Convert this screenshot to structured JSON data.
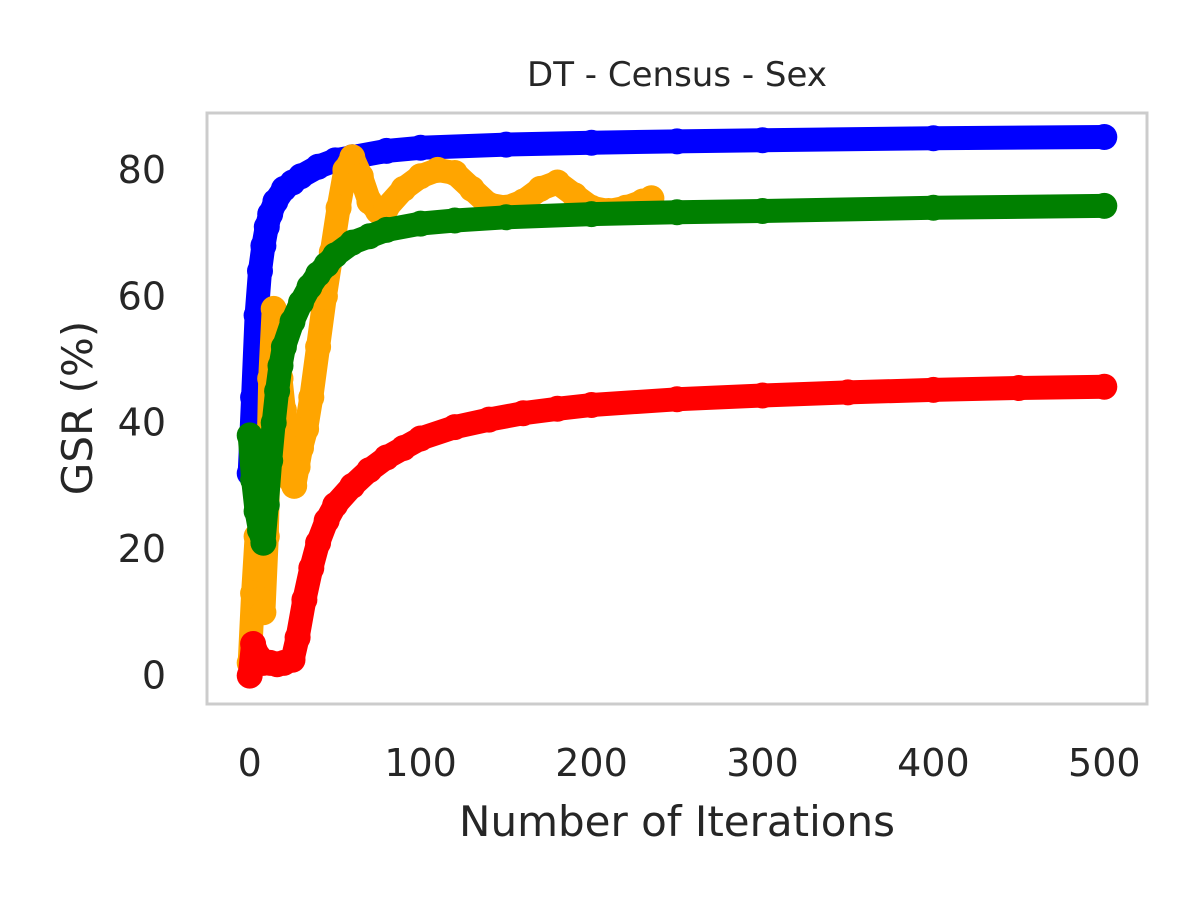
{
  "chart_data": {
    "type": "line",
    "title": "DT - Census - Sex",
    "xlabel": "Number of Iterations",
    "ylabel": "GSR (%)",
    "xlim": [
      -25,
      525
    ],
    "ylim": [
      -4.5,
      89
    ],
    "xticks": [
      0,
      100,
      200,
      300,
      400,
      500
    ],
    "yticks": [
      0,
      20,
      40,
      60,
      80
    ],
    "grid": false,
    "markers": true,
    "series": [
      {
        "color": "#0000ff",
        "x": [
          0,
          2,
          4,
          6,
          8,
          10,
          12,
          15,
          20,
          25,
          30,
          40,
          50,
          60,
          80,
          100,
          150,
          200,
          250,
          300,
          400,
          500
        ],
        "values": [
          32,
          44,
          57,
          64,
          68,
          71,
          73,
          75,
          77,
          78,
          79,
          80.5,
          81.5,
          82,
          83,
          83.5,
          84,
          84.3,
          84.5,
          84.7,
          85,
          85.2
        ]
      },
      {
        "color": "#ffa500",
        "x": [
          0,
          2,
          4,
          6,
          8,
          10,
          12,
          14,
          16,
          18,
          20,
          22,
          24,
          26,
          28,
          30,
          33,
          36,
          40,
          44,
          48,
          52,
          56,
          60,
          65,
          70,
          75,
          80,
          90,
          100,
          110,
          120,
          130,
          140,
          150,
          160,
          170,
          180,
          190,
          200,
          210,
          220,
          230,
          235
        ],
        "values": [
          2,
          13,
          22,
          12,
          10,
          22,
          47,
          58,
          56,
          47,
          42,
          37,
          31,
          30,
          33,
          36,
          39,
          44,
          52,
          60,
          67,
          74,
          80,
          82,
          79,
          75,
          73.5,
          74,
          77,
          79,
          80,
          79.5,
          77,
          74.5,
          74,
          75,
          77,
          78,
          76,
          74,
          73.5,
          74,
          75,
          75.5
        ]
      },
      {
        "color": "#008000",
        "x": [
          0,
          2,
          4,
          6,
          8,
          10,
          12,
          14,
          16,
          18,
          20,
          25,
          30,
          35,
          40,
          45,
          50,
          60,
          70,
          80,
          100,
          120,
          150,
          200,
          250,
          300,
          400,
          500
        ],
        "values": [
          38,
          31,
          26,
          23,
          21,
          27,
          34,
          40,
          45,
          49,
          52,
          56,
          59,
          61.5,
          63.5,
          65,
          66.5,
          68.5,
          69.5,
          70.5,
          71.5,
          72,
          72.5,
          73,
          73.3,
          73.5,
          74,
          74.3
        ]
      },
      {
        "color": "#ff0000",
        "x": [
          0,
          2,
          5,
          8,
          12,
          16,
          20,
          25,
          28,
          32,
          36,
          40,
          45,
          50,
          60,
          70,
          80,
          90,
          100,
          120,
          140,
          160,
          180,
          200,
          250,
          300,
          350,
          400,
          450,
          500
        ],
        "values": [
          0,
          5,
          3,
          2,
          2,
          1.8,
          2,
          2.5,
          6,
          12,
          17,
          21,
          24.5,
          27,
          30,
          32.5,
          34.5,
          36,
          37.5,
          39.3,
          40.5,
          41.5,
          42.2,
          42.8,
          43.7,
          44.3,
          44.8,
          45.2,
          45.5,
          45.7
        ]
      }
    ]
  }
}
